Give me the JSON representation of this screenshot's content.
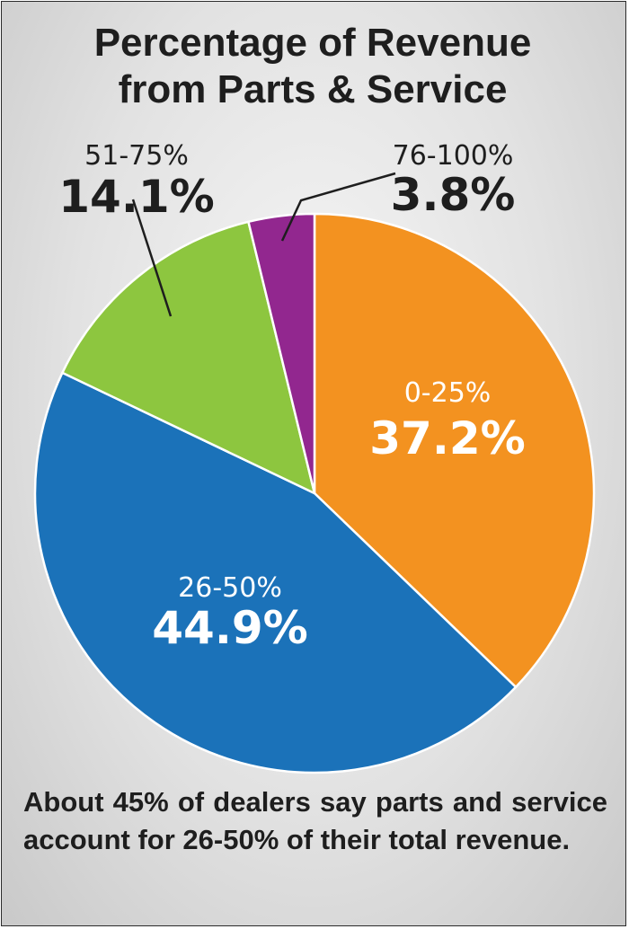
{
  "chart_data": {
    "type": "pie",
    "title_lines": [
      "Percentage of Revenue",
      "from Parts & Service"
    ],
    "slices": [
      {
        "category": "0-25%",
        "value": 37.2,
        "value_label": "37.2%",
        "color": "#f39220",
        "label_color": "#ffffff"
      },
      {
        "category": "26-50%",
        "value": 44.9,
        "value_label": "44.9%",
        "color": "#1b72b9",
        "label_color": "#ffffff"
      },
      {
        "category": "51-75%",
        "value": 14.1,
        "value_label": "14.1%",
        "color": "#8dc63f",
        "label_color": "#1e1e1e"
      },
      {
        "category": "76-100%",
        "value": 3.8,
        "value_label": "3.8%",
        "color": "#92278f",
        "label_color": "#1e1e1e"
      }
    ],
    "start_angle_deg": 0,
    "direction": "clockwise",
    "legend": "none"
  },
  "caption": "About 45% of dealers say parts and service account for 26-50% of their total revenue."
}
